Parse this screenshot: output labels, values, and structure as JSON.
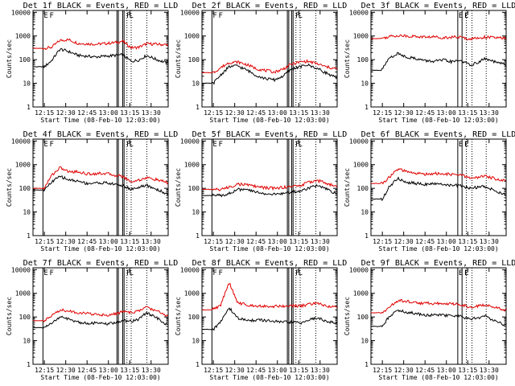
{
  "chart_data": [
    {
      "type": "line",
      "title": "Det 1f BLACK = Events, RED = LLD",
      "xlabel": "Start Time (08-Feb-10 12:03:00)",
      "ylabel": "Counts/sec",
      "yscale": "log",
      "ylim": [
        1,
        12000
      ],
      "xlim": [
        "12:07",
        "13:42"
      ],
      "xticks": [
        "12:15",
        "12:30",
        "12:45",
        "13:00",
        "13:15",
        "13:30"
      ],
      "yticks": [
        "1",
        "10",
        "100",
        "1000",
        "10000"
      ],
      "flags": [
        "E",
        "F",
        "F",
        "L"
      ],
      "x": [
        "12:07",
        "12:14",
        "12:15",
        "12:20",
        "12:26",
        "12:32",
        "12:39",
        "12:45",
        "12:51",
        "12:58",
        "13:04",
        "13:10",
        "13:16",
        "13:21",
        "13:27",
        "13:34",
        "13:42"
      ],
      "series": [
        {
          "name": "LLD",
          "values": [
            300,
            300,
            300,
            330,
            650,
            700,
            480,
            470,
            450,
            480,
            520,
            600,
            320,
            330,
            470,
            450,
            420
          ]
        },
        {
          "name": "Events",
          "values": [
            50,
            50,
            50,
            90,
            280,
            220,
            150,
            140,
            130,
            140,
            150,
            160,
            85,
            95,
            150,
            100,
            70
          ]
        }
      ]
    },
    {
      "type": "line",
      "title": "Det 2f BLACK = Events, RED = LLD",
      "xlabel": "Start Time (08-Feb-10 12:03:00)",
      "ylabel": "Counts/sec",
      "yscale": "log",
      "ylim": [
        1,
        12000
      ],
      "xlim": [
        "12:07",
        "13:42"
      ],
      "xticks": [
        "12:15",
        "12:30",
        "12:45",
        "13:00",
        "13:15",
        "13:30"
      ],
      "yticks": [
        "1",
        "10",
        "100",
        "1000",
        "10000"
      ],
      "flags": [
        "F",
        "F",
        "F",
        "L"
      ],
      "x": [
        "12:07",
        "12:14",
        "12:15",
        "12:20",
        "12:26",
        "12:32",
        "12:39",
        "12:45",
        "12:51",
        "12:58",
        "13:04",
        "13:10",
        "13:16",
        "13:21",
        "13:27",
        "13:34",
        "13:42"
      ],
      "series": [
        {
          "name": "LLD",
          "values": [
            28,
            28,
            28,
            45,
            75,
            80,
            60,
            42,
            35,
            30,
            40,
            65,
            80,
            85,
            70,
            50,
            40
          ]
        },
        {
          "name": "Events",
          "values": [
            10,
            10,
            10,
            22,
            50,
            55,
            35,
            22,
            16,
            14,
            20,
            40,
            50,
            60,
            45,
            28,
            16
          ]
        }
      ]
    },
    {
      "type": "line",
      "title": "Det 3f BLACK = Events, RED = LLD",
      "xlabel": "Start Time (08-Feb-10 12:03:00)",
      "ylabel": "Counts/sec",
      "yscale": "log",
      "ylim": [
        1,
        12000
      ],
      "xlim": [
        "12:07",
        "13:42"
      ],
      "xticks": [
        "12:15",
        "12:30",
        "12:45",
        "13:00",
        "13:15",
        "13:30"
      ],
      "yticks": [
        "1",
        "10",
        "100",
        "1000",
        "10000"
      ],
      "flags": [
        "E",
        "F",
        "L"
      ],
      "x": [
        "12:07",
        "12:14",
        "12:15",
        "12:20",
        "12:26",
        "12:32",
        "12:39",
        "12:45",
        "12:51",
        "12:58",
        "13:04",
        "13:10",
        "13:16",
        "13:21",
        "13:27",
        "13:34",
        "13:42"
      ],
      "series": [
        {
          "name": "LLD",
          "values": [
            780,
            780,
            800,
            950,
            1050,
            1000,
            950,
            900,
            920,
            850,
            900,
            880,
            750,
            800,
            900,
            850,
            780
          ]
        },
        {
          "name": "Events",
          "values": [
            35,
            35,
            40,
            120,
            180,
            130,
            110,
            90,
            85,
            95,
            80,
            95,
            60,
            70,
            110,
            80,
            60
          ]
        }
      ]
    },
    {
      "type": "line",
      "title": "Det 4f BLACK = Events, RED = LLD",
      "xlabel": "Start Time (08-Feb-10 12:03:00)",
      "ylabel": "Counts/sec",
      "yscale": "log",
      "ylim": [
        1,
        12000
      ],
      "xlim": [
        "12:07",
        "13:42"
      ],
      "xticks": [
        "12:15",
        "12:30",
        "12:45",
        "13:00",
        "13:15",
        "13:30"
      ],
      "yticks": [
        "1",
        "10",
        "100",
        "1000",
        "10000"
      ],
      "flags": [
        "E",
        "F",
        "F",
        "L"
      ],
      "x": [
        "12:07",
        "12:14",
        "12:15",
        "12:20",
        "12:26",
        "12:32",
        "12:39",
        "12:45",
        "12:51",
        "12:58",
        "13:04",
        "13:10",
        "13:16",
        "13:21",
        "13:27",
        "13:34",
        "13:42"
      ],
      "series": [
        {
          "name": "LLD",
          "values": [
            100,
            100,
            100,
            350,
            750,
            500,
            500,
            400,
            420,
            430,
            360,
            320,
            190,
            220,
            280,
            230,
            170
          ]
        },
        {
          "name": "Events",
          "values": [
            85,
            85,
            85,
            180,
            320,
            230,
            200,
            160,
            170,
            170,
            150,
            130,
            90,
            110,
            130,
            90,
            55
          ]
        }
      ]
    },
    {
      "type": "line",
      "title": "Det 5f BLACK = Events, RED = LLD",
      "xlabel": "Start Time (08-Feb-10 12:03:00)",
      "ylabel": "Counts/sec",
      "yscale": "log",
      "ylim": [
        1,
        12000
      ],
      "xlim": [
        "12:07",
        "13:42"
      ],
      "xticks": [
        "12:15",
        "12:30",
        "12:45",
        "13:00",
        "13:15",
        "13:30"
      ],
      "yticks": [
        "1",
        "10",
        "100",
        "1000",
        "10000"
      ],
      "flags": [
        "E",
        "F",
        "F",
        "L"
      ],
      "x": [
        "12:07",
        "12:14",
        "12:15",
        "12:20",
        "12:26",
        "12:32",
        "12:39",
        "12:45",
        "12:51",
        "12:58",
        "13:04",
        "13:10",
        "13:16",
        "13:21",
        "13:27",
        "13:34",
        "13:42"
      ],
      "series": [
        {
          "name": "LLD",
          "values": [
            90,
            90,
            90,
            90,
            110,
            150,
            140,
            120,
            105,
            100,
            110,
            120,
            130,
            170,
            220,
            170,
            110
          ]
        },
        {
          "name": "Events",
          "values": [
            50,
            50,
            50,
            50,
            60,
            90,
            85,
            70,
            60,
            55,
            60,
            70,
            75,
            100,
            130,
            95,
            55
          ]
        }
      ]
    },
    {
      "type": "line",
      "title": "Det 6f BLACK = Events, RED = LLD",
      "xlabel": "Start Time (08-Feb-10 12:03:00)",
      "ylabel": "Counts/sec",
      "yscale": "log",
      "ylim": [
        1,
        12000
      ],
      "xlim": [
        "12:07",
        "13:42"
      ],
      "xticks": [
        "12:15",
        "12:30",
        "12:45",
        "13:00",
        "13:15",
        "13:30"
      ],
      "yticks": [
        "1",
        "10",
        "100",
        "1000",
        "10000"
      ],
      "flags": [
        "E",
        "F",
        "L"
      ],
      "x": [
        "12:07",
        "12:14",
        "12:15",
        "12:20",
        "12:26",
        "12:32",
        "12:39",
        "12:45",
        "12:51",
        "12:58",
        "13:04",
        "13:10",
        "13:16",
        "13:21",
        "13:27",
        "13:34",
        "13:42"
      ],
      "series": [
        {
          "name": "LLD",
          "values": [
            160,
            160,
            160,
            300,
            650,
            500,
            420,
            400,
            420,
            400,
            380,
            370,
            280,
            280,
            330,
            260,
            210
          ]
        },
        {
          "name": "Events",
          "values": [
            35,
            35,
            35,
            120,
            260,
            180,
            160,
            150,
            150,
            150,
            130,
            130,
            100,
            110,
            120,
            80,
            50
          ]
        }
      ]
    },
    {
      "type": "line",
      "title": "Det 7f BLACK = Events, RED = LLD",
      "xlabel": "Start Time (08-Feb-10 12:03:00)",
      "ylabel": "Counts/sec",
      "yscale": "log",
      "ylim": [
        1,
        12000
      ],
      "xlim": [
        "12:07",
        "13:42"
      ],
      "xticks": [
        "12:15",
        "12:30",
        "12:45",
        "13:00",
        "13:15",
        "13:30"
      ],
      "yticks": [
        "1",
        "10",
        "100",
        "1000",
        "10000"
      ],
      "flags": [
        "E",
        "F",
        "F",
        "L"
      ],
      "x": [
        "12:07",
        "12:14",
        "12:15",
        "12:20",
        "12:26",
        "12:32",
        "12:39",
        "12:45",
        "12:51",
        "12:58",
        "13:04",
        "13:10",
        "13:16",
        "13:21",
        "13:27",
        "13:34",
        "13:42"
      ],
      "series": [
        {
          "name": "LLD",
          "values": [
            70,
            70,
            70,
            110,
            200,
            180,
            150,
            140,
            130,
            120,
            130,
            170,
            150,
            180,
            260,
            180,
            110
          ]
        },
        {
          "name": "Events",
          "values": [
            35,
            35,
            35,
            55,
            100,
            80,
            60,
            55,
            55,
            50,
            55,
            70,
            65,
            80,
            150,
            90,
            45
          ]
        }
      ]
    },
    {
      "type": "line",
      "title": "Det 8f BLACK = Events, RED = LLD",
      "xlabel": "Start Time (08-Feb-10 12:03:00)",
      "ylabel": "Counts/sec",
      "yscale": "log",
      "ylim": [
        1,
        12000
      ],
      "xlim": [
        "12:07",
        "13:42"
      ],
      "xticks": [
        "12:15",
        "12:30",
        "12:45",
        "13:00",
        "13:15",
        "13:30"
      ],
      "yticks": [
        "1",
        "10",
        "100",
        "1000",
        "10000"
      ],
      "flags": [
        "F",
        "F",
        "F",
        "L"
      ],
      "x": [
        "12:07",
        "12:14",
        "12:15",
        "12:20",
        "12:26",
        "12:32",
        "12:39",
        "12:45",
        "12:51",
        "12:58",
        "13:04",
        "13:10",
        "13:16",
        "13:21",
        "13:27",
        "13:34",
        "13:42"
      ],
      "series": [
        {
          "name": "LLD",
          "values": [
            200,
            200,
            220,
            300,
            3000,
            400,
            320,
            300,
            290,
            280,
            290,
            300,
            280,
            330,
            380,
            300,
            250
          ]
        },
        {
          "name": "Events",
          "values": [
            30,
            30,
            30,
            60,
            250,
            90,
            70,
            75,
            70,
            65,
            60,
            60,
            55,
            70,
            90,
            70,
            50
          ]
        }
      ]
    },
    {
      "type": "line",
      "title": "Det 9f BLACK = Events, RED = LLD",
      "xlabel": "Start Time (08-Feb-10 12:03:00)",
      "ylabel": "Counts/sec",
      "yscale": "log",
      "ylim": [
        1,
        12000
      ],
      "xlim": [
        "12:07",
        "13:42"
      ],
      "xticks": [
        "12:15",
        "12:30",
        "12:45",
        "13:00",
        "13:15",
        "13:30"
      ],
      "yticks": [
        "1",
        "10",
        "100",
        "1000",
        "10000"
      ],
      "flags": [
        "E",
        "F",
        "L"
      ],
      "x": [
        "12:07",
        "12:14",
        "12:15",
        "12:20",
        "12:26",
        "12:32",
        "12:39",
        "12:45",
        "12:51",
        "12:58",
        "13:04",
        "13:10",
        "13:16",
        "13:21",
        "13:27",
        "13:34",
        "13:42"
      ],
      "series": [
        {
          "name": "LLD",
          "values": [
            150,
            150,
            150,
            260,
            500,
            450,
            400,
            380,
            380,
            370,
            350,
            340,
            260,
            280,
            330,
            250,
            200
          ]
        },
        {
          "name": "Events",
          "values": [
            40,
            40,
            40,
            110,
            200,
            160,
            140,
            120,
            120,
            120,
            110,
            110,
            80,
            90,
            110,
            70,
            45
          ]
        }
      ]
    }
  ]
}
